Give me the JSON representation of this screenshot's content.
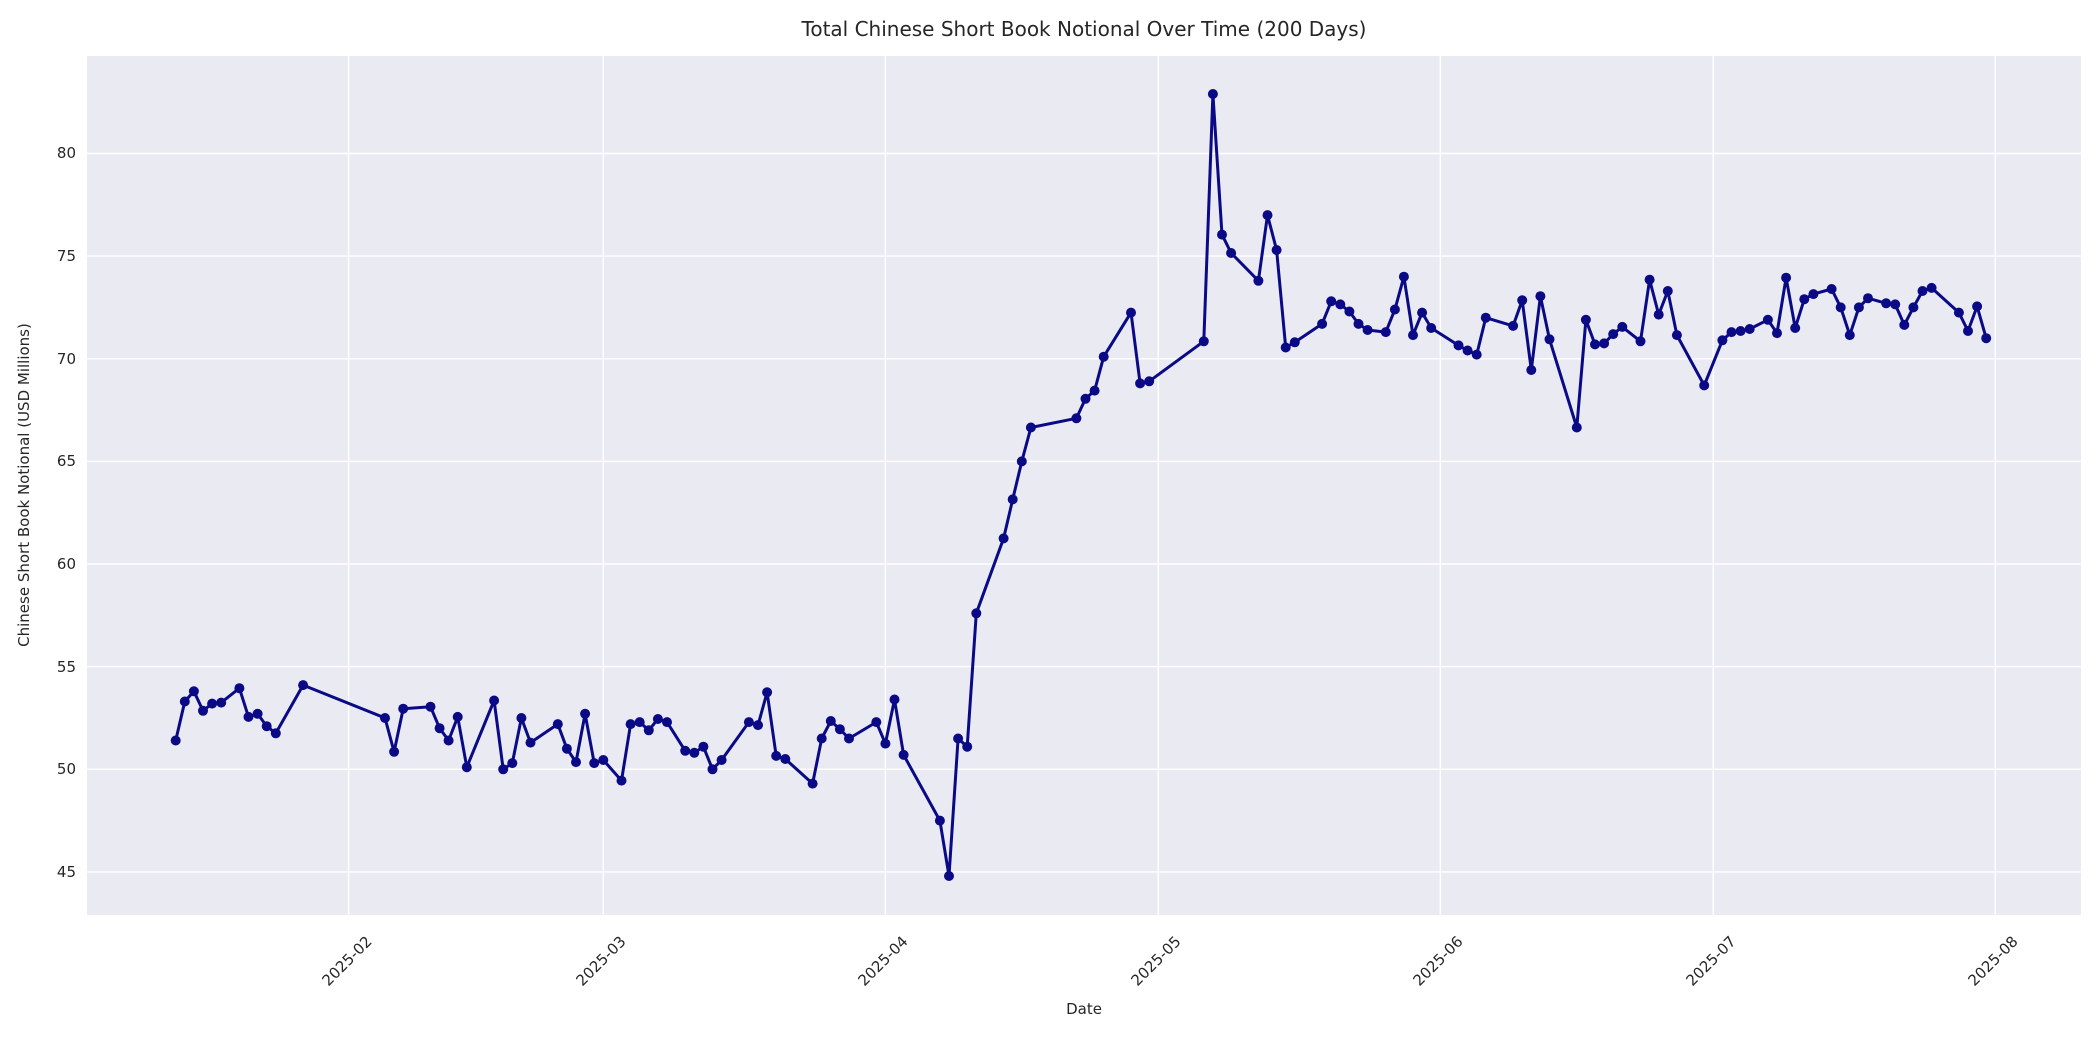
{
  "figure": {
    "title": "Total Chinese Short Book Notional Over Time (200 Days)",
    "xlabel": "Date",
    "ylabel": "Chinese Short Book Notional (USD Millions)"
  },
  "colors": {
    "line": "#0a0a86",
    "plot_background": "#eaeaf2",
    "grid": "#ffffff",
    "text": "#262626",
    "figure_background": "#ffffff"
  },
  "chart_data": {
    "type": "line",
    "title": "Total Chinese Short Book Notional Over Time (200 Days)",
    "xlabel": "Date",
    "ylabel": "Chinese Short Book Notional (USD Millions)",
    "grid": true,
    "legend": false,
    "marker": "o",
    "x_tick_labels": [
      "2025-02",
      "2025-03",
      "2025-04",
      "2025-05",
      "2025-06",
      "2025-07",
      "2025-08"
    ],
    "y_ticks": [
      45,
      50,
      55,
      60,
      65,
      70,
      75,
      80
    ],
    "ylim": [
      42.9,
      84.75
    ],
    "xlim": [
      "2025-01-03",
      "2025-08-10"
    ],
    "series": [
      {
        "name": "Chinese Short Book Notional (USD Millions)",
        "points": [
          [
            "2025-01-13",
            51.4
          ],
          [
            "2025-01-14",
            53.3
          ],
          [
            "2025-01-15",
            53.8
          ],
          [
            "2025-01-16",
            52.85
          ],
          [
            "2025-01-17",
            53.2
          ],
          [
            "2025-01-18",
            53.25
          ],
          [
            "2025-01-20",
            53.95
          ],
          [
            "2025-01-21",
            52.55
          ],
          [
            "2025-01-22",
            52.7
          ],
          [
            "2025-01-23",
            52.1
          ],
          [
            "2025-01-24",
            51.75
          ],
          [
            "2025-01-27",
            54.1
          ],
          [
            "2025-02-05",
            52.5
          ],
          [
            "2025-02-06",
            50.85
          ],
          [
            "2025-02-07",
            52.95
          ],
          [
            "2025-02-10",
            53.05
          ],
          [
            "2025-02-11",
            52.0
          ],
          [
            "2025-02-12",
            51.4
          ],
          [
            "2025-02-13",
            52.55
          ],
          [
            "2025-02-14",
            50.1
          ],
          [
            "2025-02-17",
            53.35
          ],
          [
            "2025-02-18",
            50.0
          ],
          [
            "2025-02-19",
            50.3
          ],
          [
            "2025-02-20",
            52.5
          ],
          [
            "2025-02-21",
            51.3
          ],
          [
            "2025-02-24",
            52.2
          ],
          [
            "2025-02-25",
            51.0
          ],
          [
            "2025-02-26",
            50.35
          ],
          [
            "2025-02-27",
            52.7
          ],
          [
            "2025-02-28",
            50.3
          ],
          [
            "2025-03-01",
            50.45
          ],
          [
            "2025-03-03",
            49.45
          ],
          [
            "2025-03-04",
            52.2
          ],
          [
            "2025-03-05",
            52.3
          ],
          [
            "2025-03-06",
            51.9
          ],
          [
            "2025-03-07",
            52.45
          ],
          [
            "2025-03-08",
            52.3
          ],
          [
            "2025-03-10",
            50.9
          ],
          [
            "2025-03-11",
            50.8
          ],
          [
            "2025-03-12",
            51.1
          ],
          [
            "2025-03-13",
            50.0
          ],
          [
            "2025-03-14",
            50.45
          ],
          [
            "2025-03-17",
            52.3
          ],
          [
            "2025-03-18",
            52.15
          ],
          [
            "2025-03-19",
            53.75
          ],
          [
            "2025-03-20",
            50.65
          ],
          [
            "2025-03-21",
            50.5
          ],
          [
            "2025-03-24",
            49.3
          ],
          [
            "2025-03-25",
            51.5
          ],
          [
            "2025-03-26",
            52.35
          ],
          [
            "2025-03-27",
            51.95
          ],
          [
            "2025-03-28",
            51.5
          ],
          [
            "2025-03-31",
            52.3
          ],
          [
            "2025-04-01",
            51.25
          ],
          [
            "2025-04-02",
            53.4
          ],
          [
            "2025-04-03",
            50.7
          ],
          [
            "2025-04-07",
            47.5
          ],
          [
            "2025-04-08",
            44.8
          ],
          [
            "2025-04-09",
            51.5
          ],
          [
            "2025-04-10",
            51.1
          ],
          [
            "2025-04-11",
            57.6
          ],
          [
            "2025-04-14",
            61.25
          ],
          [
            "2025-04-15",
            63.15
          ],
          [
            "2025-04-16",
            65.0
          ],
          [
            "2025-04-17",
            66.65
          ],
          [
            "2025-04-22",
            67.1
          ],
          [
            "2025-04-23",
            68.05
          ],
          [
            "2025-04-24",
            68.45
          ],
          [
            "2025-04-25",
            70.1
          ],
          [
            "2025-04-28",
            72.25
          ],
          [
            "2025-04-29",
            68.8
          ],
          [
            "2025-04-30",
            68.9
          ],
          [
            "2025-05-06",
            70.85
          ],
          [
            "2025-05-07",
            82.9
          ],
          [
            "2025-05-08",
            76.05
          ],
          [
            "2025-05-09",
            75.15
          ],
          [
            "2025-05-12",
            73.8
          ],
          [
            "2025-05-13",
            77.0
          ],
          [
            "2025-05-14",
            75.3
          ],
          [
            "2025-05-15",
            70.55
          ],
          [
            "2025-05-16",
            70.8
          ],
          [
            "2025-05-19",
            71.7
          ],
          [
            "2025-05-20",
            72.8
          ],
          [
            "2025-05-21",
            72.65
          ],
          [
            "2025-05-22",
            72.3
          ],
          [
            "2025-05-23",
            71.7
          ],
          [
            "2025-05-24",
            71.4
          ],
          [
            "2025-05-26",
            71.3
          ],
          [
            "2025-05-27",
            72.4
          ],
          [
            "2025-05-28",
            74.0
          ],
          [
            "2025-05-29",
            71.15
          ],
          [
            "2025-05-30",
            72.25
          ],
          [
            "2025-05-31",
            71.5
          ],
          [
            "2025-06-03",
            70.65
          ],
          [
            "2025-06-04",
            70.4
          ],
          [
            "2025-06-05",
            70.2
          ],
          [
            "2025-06-06",
            72.0
          ],
          [
            "2025-06-09",
            71.6
          ],
          [
            "2025-06-10",
            72.85
          ],
          [
            "2025-06-11",
            69.45
          ],
          [
            "2025-06-12",
            73.05
          ],
          [
            "2025-06-13",
            70.95
          ],
          [
            "2025-06-16",
            66.65
          ],
          [
            "2025-06-17",
            71.9
          ],
          [
            "2025-06-18",
            70.7
          ],
          [
            "2025-06-19",
            70.75
          ],
          [
            "2025-06-20",
            71.2
          ],
          [
            "2025-06-21",
            71.55
          ],
          [
            "2025-06-23",
            70.85
          ],
          [
            "2025-06-24",
            73.85
          ],
          [
            "2025-06-25",
            72.15
          ],
          [
            "2025-06-26",
            73.3
          ],
          [
            "2025-06-27",
            71.15
          ],
          [
            "2025-06-30",
            68.7
          ],
          [
            "2025-07-02",
            70.9
          ],
          [
            "2025-07-03",
            71.3
          ],
          [
            "2025-07-04",
            71.35
          ],
          [
            "2025-07-05",
            71.45
          ],
          [
            "2025-07-07",
            71.9
          ],
          [
            "2025-07-08",
            71.25
          ],
          [
            "2025-07-09",
            73.95
          ],
          [
            "2025-07-10",
            71.5
          ],
          [
            "2025-07-11",
            72.9
          ],
          [
            "2025-07-12",
            73.15
          ],
          [
            "2025-07-14",
            73.4
          ],
          [
            "2025-07-15",
            72.5
          ],
          [
            "2025-07-16",
            71.15
          ],
          [
            "2025-07-17",
            72.5
          ],
          [
            "2025-07-18",
            72.95
          ],
          [
            "2025-07-20",
            72.7
          ],
          [
            "2025-07-21",
            72.65
          ],
          [
            "2025-07-22",
            71.65
          ],
          [
            "2025-07-23",
            72.5
          ],
          [
            "2025-07-24",
            73.3
          ],
          [
            "2025-07-25",
            73.45
          ],
          [
            "2025-07-28",
            72.25
          ],
          [
            "2025-07-29",
            71.35
          ],
          [
            "2025-07-30",
            72.55
          ],
          [
            "2025-07-31",
            71.0
          ]
        ]
      }
    ]
  }
}
